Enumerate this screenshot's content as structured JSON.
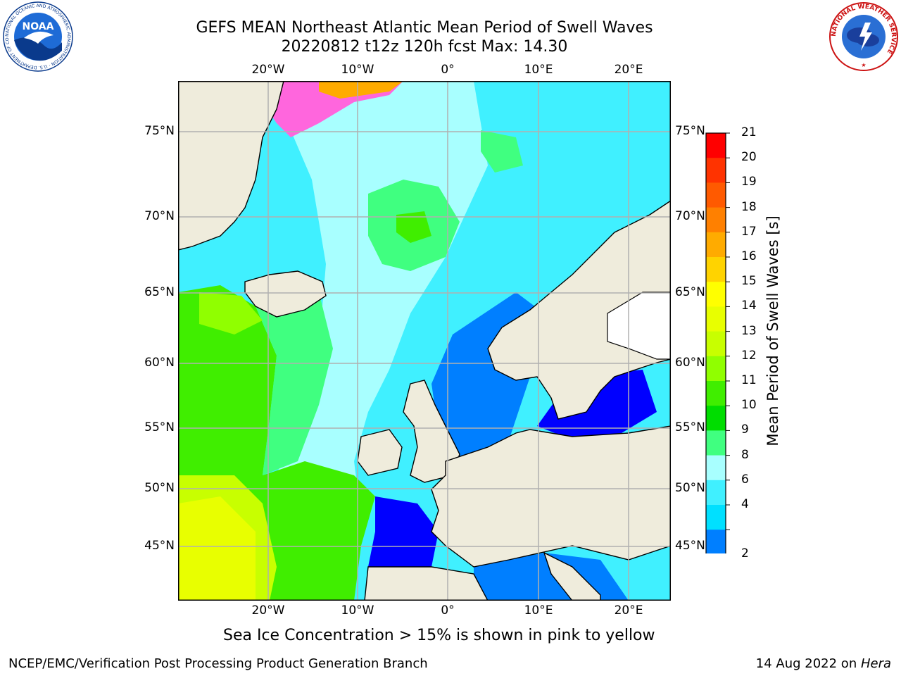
{
  "title_line1": "GEFS MEAN Northeast Atlantic Mean Period of Swell Waves",
  "title_line2": "20220812 t12z 120h fcst   Max: 14.30",
  "map": {
    "lon_labels": [
      "20°W",
      "10°W",
      "0°",
      "10°E",
      "20°E"
    ],
    "lat_labels": [
      "75°N",
      "70°N",
      "65°N",
      "60°N",
      "55°N",
      "50°N",
      "45°N"
    ],
    "land_color": "#efecdc",
    "grid_color": "#b0b0b0"
  },
  "colorbar": {
    "label": "Mean Period of Swell Waves [s]",
    "ticks": [
      "21",
      "20",
      "19",
      "18",
      "17",
      "16",
      "15",
      "14",
      "13",
      "12",
      "11",
      "10",
      "9",
      "8",
      "6",
      "4",
      "2"
    ],
    "colors": [
      "#ff0000",
      "#ff3300",
      "#ff5a00",
      "#ff8000",
      "#ffab00",
      "#ffd300",
      "#ffff00",
      "#e8ff00",
      "#c8ff00",
      "#90ff00",
      "#40ee00",
      "#00dd00",
      "#40ff80",
      "#a8ffff",
      "#40f0ff",
      "#00e0ff",
      "#007fff"
    ],
    "extend_color": "#0000ff"
  },
  "subtitle": "Sea Ice Concentration > 15% is shown in pink to yellow",
  "footer_left": "NCEP/EMC/Verification Post Processing Product Generation Branch",
  "footer_right_date": "14 Aug 2022 on ",
  "footer_right_host": "Hera",
  "logos": {
    "left": "NOAA",
    "left_ring": "NATIONAL OCEANIC AND ATMOSPHERIC ADMINISTRATION · U.S. DEPARTMENT OF COMMERCE",
    "right_ring": "NATIONAL WEATHER SERVICE"
  }
}
